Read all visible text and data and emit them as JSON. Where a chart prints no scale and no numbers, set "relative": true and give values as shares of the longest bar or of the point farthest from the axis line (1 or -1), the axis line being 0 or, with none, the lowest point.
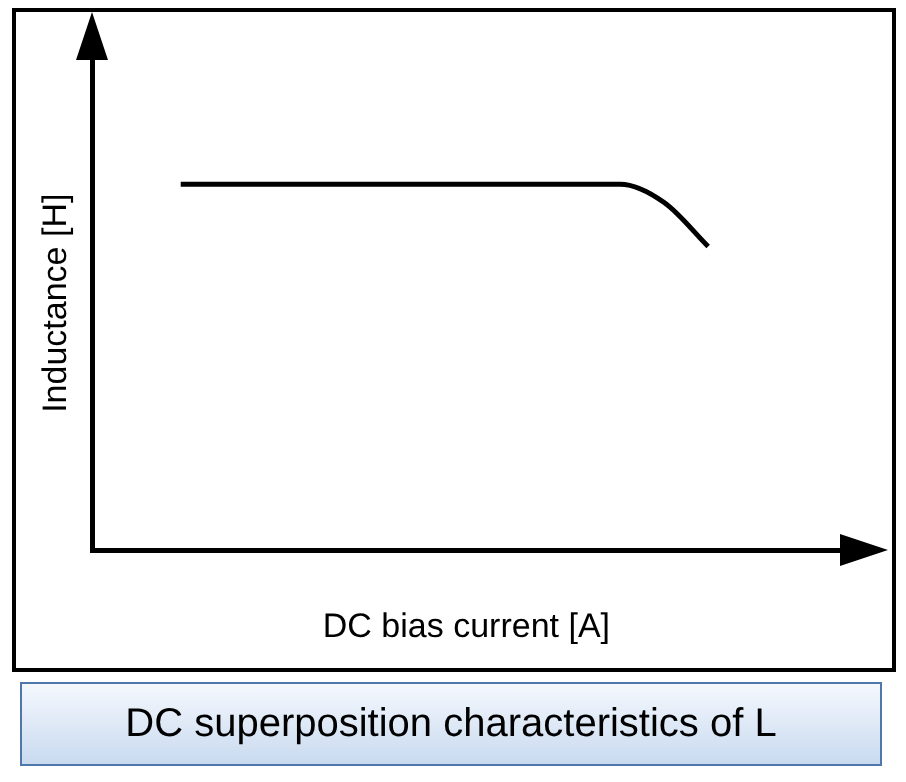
{
  "chart_data": {
    "type": "line",
    "xlabel": "DC bias current [A]",
    "ylabel": "Inductance [H]",
    "categories": [
      null,
      null,
      null,
      null,
      null,
      null,
      null,
      null,
      null,
      null,
      null,
      null,
      null,
      null,
      null,
      null,
      null,
      null
    ],
    "relative": true,
    "series": [
      {
        "color": "#000000",
        "values": [
          null,
          null,
          1,
          1,
          1,
          1,
          1,
          1,
          1,
          1,
          1,
          1,
          1,
          0.95,
          0.83,
          null,
          null,
          null
        ]
      }
    ],
    "grid": false,
    "legend": false,
    "marker": "none",
    "line_style": "solid",
    "annotations": [
      "DC superposition characteristics of L"
    ]
  }
}
